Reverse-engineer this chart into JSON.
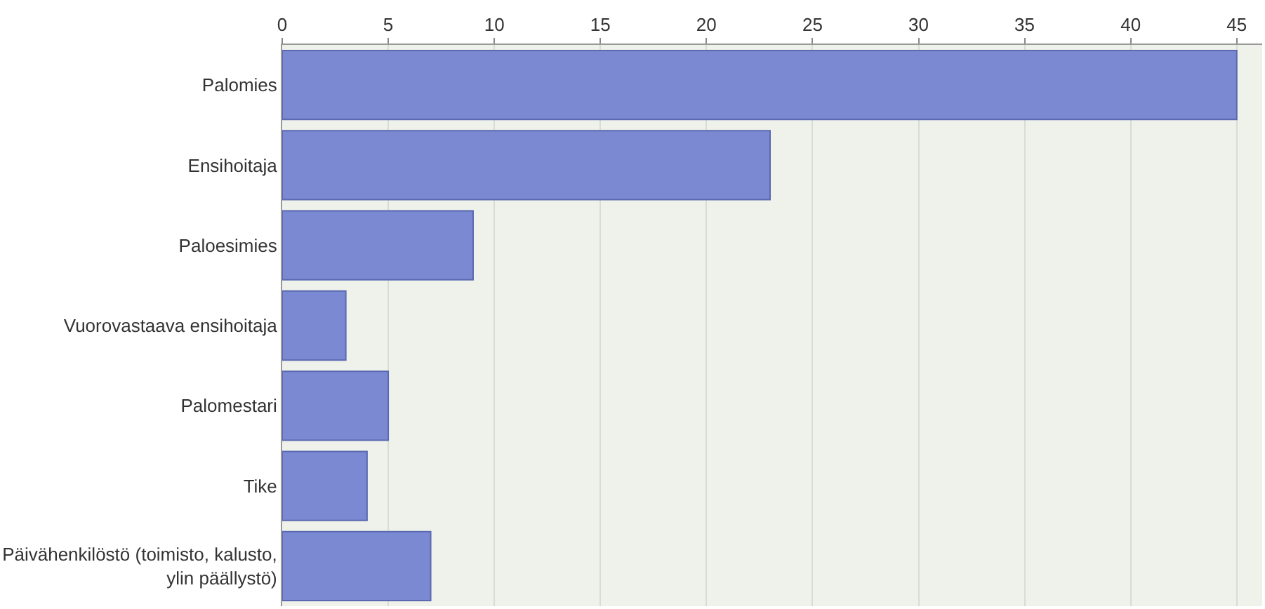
{
  "chart_data": {
    "type": "bar",
    "orientation": "horizontal",
    "categories": [
      "Palomies",
      "Ensihoitaja",
      "Paloesimies",
      "Vuorovastaava ensihoitaja",
      "Palomestari",
      "Tike",
      "Päivähenkilöstö (toimisto, kalusto,\nylin päällystö)"
    ],
    "values": [
      45,
      23,
      9,
      3,
      5,
      4,
      7
    ],
    "color": "#7a89d2",
    "xlim": [
      0,
      46.2
    ],
    "xticks": [
      0,
      5,
      10,
      15,
      20,
      25,
      30,
      35,
      40,
      45
    ],
    "grid": "x"
  }
}
